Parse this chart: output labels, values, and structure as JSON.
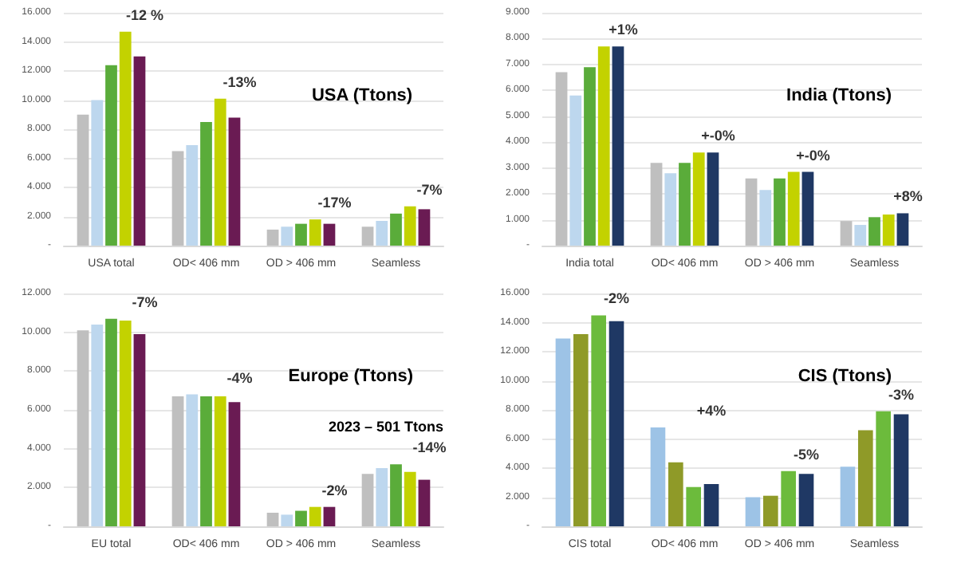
{
  "chart_data": [
    {
      "type": "bar",
      "title": "USA (Ttons)",
      "categories": [
        "USA total",
        "OD< 406 mm",
        "OD > 406 mm",
        "Seamless"
      ],
      "series": [
        {
          "color": "#bfbfbf",
          "values": [
            9000,
            6500,
            1100,
            1300
          ]
        },
        {
          "color": "#bdd7ee",
          "values": [
            10000,
            6900,
            1300,
            1700
          ]
        },
        {
          "color": "#5aac3a",
          "values": [
            12400,
            8500,
            1500,
            2200
          ]
        },
        {
          "color": "#c3d200",
          "values": [
            14700,
            10100,
            1800,
            2700
          ]
        },
        {
          "color": "#6a1b53",
          "values": [
            13000,
            8800,
            1500,
            2500
          ]
        }
      ],
      "ylim": [
        0,
        16000
      ],
      "yticks": [
        {
          "value": 0,
          "label": "-"
        },
        {
          "value": 2000,
          "label": "2.000"
        },
        {
          "value": 4000,
          "label": "4.000"
        },
        {
          "value": 6000,
          "label": "6.000"
        },
        {
          "value": 8000,
          "label": "8.000"
        },
        {
          "value": 10000,
          "label": "10.000"
        },
        {
          "value": 12000,
          "label": "12.000"
        },
        {
          "value": 14000,
          "label": "14.000"
        },
        {
          "value": 16000,
          "label": "16.000"
        }
      ],
      "annotations": [
        "-12 %",
        "-13%",
        "-17%",
        "-7%"
      ],
      "grid": "y"
    },
    {
      "type": "bar",
      "title": "India (Ttons)",
      "categories": [
        "India total",
        "OD< 406 mm",
        "OD > 406 mm",
        "Seamless"
      ],
      "series": [
        {
          "color": "#bfbfbf",
          "values": [
            6700,
            3200,
            2600,
            950
          ]
        },
        {
          "color": "#bdd7ee",
          "values": [
            5800,
            2800,
            2150,
            800
          ]
        },
        {
          "color": "#5aac3a",
          "values": [
            6900,
            3200,
            2600,
            1100
          ]
        },
        {
          "color": "#c3d200",
          "values": [
            7700,
            3600,
            2850,
            1200
          ]
        },
        {
          "color": "#1f3864",
          "values": [
            7700,
            3600,
            2850,
            1250
          ]
        }
      ],
      "ylim": [
        0,
        9000
      ],
      "yticks": [
        {
          "value": 0,
          "label": "-"
        },
        {
          "value": 1000,
          "label": "1.000"
        },
        {
          "value": 2000,
          "label": "2.000"
        },
        {
          "value": 3000,
          "label": "3.000"
        },
        {
          "value": 4000,
          "label": "4.000"
        },
        {
          "value": 5000,
          "label": "5.000"
        },
        {
          "value": 6000,
          "label": "6.000"
        },
        {
          "value": 7000,
          "label": "7.000"
        },
        {
          "value": 8000,
          "label": "8.000"
        },
        {
          "value": 9000,
          "label": "9.000"
        }
      ],
      "annotations": [
        "+1%",
        "+-0%",
        "+-0%",
        "+8%"
      ],
      "grid": "y"
    },
    {
      "type": "bar",
      "title": "Europe (Ttons)",
      "categories": [
        "EU total",
        "OD< 406 mm",
        "OD > 406 mm",
        "Seamless"
      ],
      "series": [
        {
          "color": "#bfbfbf",
          "values": [
            10100,
            6700,
            700,
            2700
          ]
        },
        {
          "color": "#bdd7ee",
          "values": [
            10400,
            6800,
            600,
            3000
          ]
        },
        {
          "color": "#5aac3a",
          "values": [
            10700,
            6700,
            800,
            3200
          ]
        },
        {
          "color": "#c3d200",
          "values": [
            10600,
            6700,
            1000,
            2800
          ]
        },
        {
          "color": "#6a1b53",
          "values": [
            9900,
            6400,
            1000,
            2400
          ]
        }
      ],
      "ylim": [
        0,
        12000
      ],
      "yticks": [
        {
          "value": 0,
          "label": "-"
        },
        {
          "value": 2000,
          "label": "2.000"
        },
        {
          "value": 4000,
          "label": "4.000"
        },
        {
          "value": 6000,
          "label": "6.000"
        },
        {
          "value": 8000,
          "label": "8.000"
        },
        {
          "value": 10000,
          "label": "10.000"
        },
        {
          "value": 12000,
          "label": "12.000"
        }
      ],
      "annotations": [
        "-7%",
        "-4%",
        "-2%",
        "-14%",
        "2023 – 501 Ttons"
      ],
      "grid": "y"
    },
    {
      "type": "bar",
      "title": "CIS (Ttons)",
      "categories": [
        "CIS total",
        "OD< 406 mm",
        "OD > 406 mm",
        "Seamless"
      ],
      "series": [
        {
          "color": "#9dc3e6",
          "values": [
            12900,
            6800,
            2000,
            4100
          ]
        },
        {
          "color": "#8f9a28",
          "values": [
            13200,
            4400,
            2100,
            6600
          ]
        },
        {
          "color": "#6cbb3c",
          "values": [
            14500,
            2700,
            3800,
            7900
          ]
        },
        {
          "color": "#1f3864",
          "values": [
            14100,
            2900,
            3600,
            7700
          ]
        }
      ],
      "ylim": [
        0,
        16000
      ],
      "yticks": [
        {
          "value": 0,
          "label": "-"
        },
        {
          "value": 2000,
          "label": "2.000"
        },
        {
          "value": 4000,
          "label": "4.000"
        },
        {
          "value": 6000,
          "label": "6.000"
        },
        {
          "value": 8000,
          "label": "8.000"
        },
        {
          "value": 10000,
          "label": "10.000"
        },
        {
          "value": 12000,
          "label": "12.000"
        },
        {
          "value": 14000,
          "label": "14.000"
        },
        {
          "value": 16000,
          "label": "16.000"
        }
      ],
      "annotations": [
        "-2%",
        "+4%",
        "-5%",
        "-3%"
      ],
      "grid": "y"
    }
  ]
}
